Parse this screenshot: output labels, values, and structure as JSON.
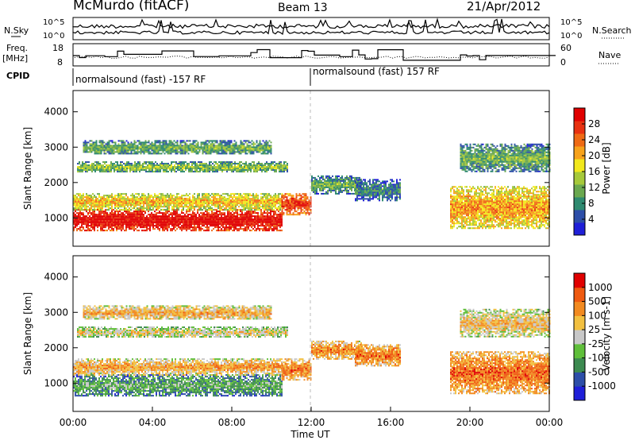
{
  "header": {
    "station": "McMurdo (fitACF)",
    "beam": "Beam 13",
    "date": "21/Apr/2012"
  },
  "noise_panel": {
    "left_label": "N.Sky",
    "right_label": "N.Search",
    "top_tick": "10^5",
    "bottom_tick": "10^0",
    "right_top_tick": "10^5",
    "right_bottom_tick": "10^0"
  },
  "freq_panel": {
    "left_label_1": "Freq.",
    "left_label_2": "[MHz]",
    "right_label": "Nave",
    "left_ticks": [
      "18",
      "8"
    ],
    "right_ticks": [
      "60",
      "0"
    ]
  },
  "cpid_panel": {
    "label": "CPID",
    "segments": [
      {
        "text": "normalsound (fast) -157 RF",
        "start_hour": 0
      },
      {
        "text": "normalsound (fast) 157 RF",
        "start_hour": 12.1
      }
    ]
  },
  "chart_data": [
    {
      "type": "heatmap",
      "name": "power",
      "ylabel": "Slant Range [km]",
      "xrange_hours": [
        0,
        24
      ],
      "ylim": [
        200,
        4600
      ],
      "yticks": [
        "1000",
        "2000",
        "3000",
        "4000"
      ],
      "colorbar": {
        "label": "Power [dB]",
        "ticks": [
          "28",
          "24",
          "20",
          "16",
          "12",
          "8",
          "4"
        ],
        "colors": [
          "#1f1fd8",
          "#2d4ea8",
          "#2f8a70",
          "#6aa84f",
          "#a6c93a",
          "#f2e81c",
          "#f7a21b",
          "#ef6a14",
          "#e83110",
          "#e00000"
        ]
      },
      "echo_regions": [
        {
          "h0": 0,
          "h1": 10.5,
          "r0": 650,
          "r1": 1250,
          "level": 0.92
        },
        {
          "h0": 0,
          "h1": 10.5,
          "r0": 1250,
          "r1": 1700,
          "level": 0.55
        },
        {
          "h0": 10.5,
          "h1": 12,
          "r0": 1100,
          "r1": 1700,
          "level": 0.8
        },
        {
          "h0": 0.2,
          "h1": 10.8,
          "r0": 2300,
          "r1": 2600,
          "level": 0.35
        },
        {
          "h0": 0.5,
          "h1": 10,
          "r0": 2800,
          "r1": 3200,
          "level": 0.3
        },
        {
          "h0": 12,
          "h1": 14.5,
          "r0": 1700,
          "r1": 2200,
          "level": 0.3
        },
        {
          "h0": 14.2,
          "h1": 16.5,
          "r0": 1500,
          "r1": 2100,
          "level": 0.2
        },
        {
          "h0": 19,
          "h1": 24,
          "r0": 700,
          "r1": 1900,
          "level": 0.6
        },
        {
          "h0": 19.5,
          "h1": 24,
          "r0": 2300,
          "r1": 3100,
          "level": 0.3
        }
      ]
    },
    {
      "type": "heatmap",
      "name": "velocity",
      "ylabel": "Slant Range [km]",
      "xlabel": "Time UT",
      "xrange_hours": [
        0,
        24
      ],
      "xticks": [
        "00:00",
        "04:00",
        "08:00",
        "12:00",
        "16:00",
        "20:00",
        "00:00"
      ],
      "ylim": [
        200,
        4600
      ],
      "yticks": [
        "1000",
        "2000",
        "3000",
        "4000"
      ],
      "colorbar": {
        "label": "Velocity [m s-1]",
        "ticks": [
          "1000",
          "500",
          "100",
          "25",
          "-25",
          "-100",
          "-500",
          "-1000"
        ],
        "colors": [
          "#1f1fd8",
          "#2d4ea8",
          "#3c8a50",
          "#5fbf3a",
          "#c8c8c8",
          "#f2c040",
          "#f28a20",
          "#ef5a10",
          "#e00000"
        ]
      },
      "echo_regions": [
        {
          "h0": 0,
          "h1": 10.5,
          "r0": 650,
          "r1": 1250,
          "level": 0.3
        },
        {
          "h0": 0,
          "h1": 10.5,
          "r0": 1250,
          "r1": 1700,
          "level": 0.62
        },
        {
          "h0": 10.5,
          "h1": 12,
          "r0": 1100,
          "r1": 1700,
          "level": 0.7
        },
        {
          "h0": 0.2,
          "h1": 10.8,
          "r0": 2300,
          "r1": 2600,
          "level": 0.5
        },
        {
          "h0": 0.5,
          "h1": 10,
          "r0": 2800,
          "r1": 3200,
          "level": 0.6
        },
        {
          "h0": 12,
          "h1": 14.5,
          "r0": 1700,
          "r1": 2200,
          "level": 0.68
        },
        {
          "h0": 14.2,
          "h1": 16.5,
          "r0": 1500,
          "r1": 2100,
          "level": 0.7
        },
        {
          "h0": 19,
          "h1": 24,
          "r0": 700,
          "r1": 1900,
          "level": 0.72
        },
        {
          "h0": 19.5,
          "h1": 24,
          "r0": 2300,
          "r1": 3100,
          "level": 0.55
        }
      ]
    }
  ]
}
